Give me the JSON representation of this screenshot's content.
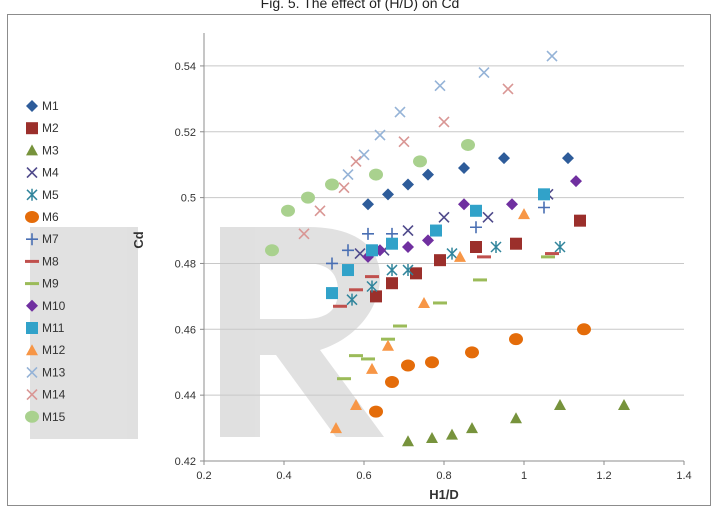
{
  "figure": {
    "title": "Fig. 5. The effect of (H/D) on Cd"
  },
  "chart_data": {
    "type": "scatter",
    "title": "Fig. 5. The effect of (H/D) on Cd",
    "xlabel": "H1/D",
    "ylabel": "Cd",
    "xlim": [
      0.2,
      1.4
    ],
    "ylim": [
      0.42,
      0.55
    ],
    "x_ticks": [
      0.2,
      0.4,
      0.6,
      0.8,
      1,
      1.2,
      1.4
    ],
    "x_tick_labels": [
      "0.2",
      "0.4",
      "0.6",
      "0.8",
      "1",
      "1.2",
      "1.4"
    ],
    "y_ticks": [
      0.42,
      0.44,
      0.46,
      0.48,
      0.5,
      0.52,
      0.54
    ],
    "y_tick_labels": [
      "0.42",
      "0.44",
      "0.46",
      "0.48",
      "0.5",
      "0.52",
      "0.54"
    ],
    "grid": "horizontal major gridlines",
    "legend_position": "left",
    "series": [
      {
        "name": "M1",
        "marker": "diamond",
        "color": "#2e5c9a",
        "x": [
          0.61,
          0.66,
          0.71,
          0.76,
          0.85,
          0.95,
          1.11
        ],
        "y": [
          0.498,
          0.501,
          0.504,
          0.507,
          0.509,
          0.512,
          0.512
        ]
      },
      {
        "name": "M2",
        "marker": "square",
        "color": "#9b2f2b",
        "x": [
          0.63,
          0.67,
          0.73,
          0.79,
          0.88,
          0.98,
          1.14
        ],
        "y": [
          0.47,
          0.474,
          0.477,
          0.481,
          0.485,
          0.486,
          0.493
        ]
      },
      {
        "name": "M3",
        "marker": "triangle",
        "color": "#77933c",
        "x": [
          0.71,
          0.77,
          0.82,
          0.87,
          0.98,
          1.09,
          1.25
        ],
        "y": [
          0.426,
          0.427,
          0.428,
          0.43,
          0.433,
          0.437,
          0.437
        ]
      },
      {
        "name": "M4",
        "marker": "x",
        "color": "#4f4a8b",
        "x": [
          0.59,
          0.65,
          0.71,
          0.8,
          0.91,
          1.06
        ],
        "y": [
          0.483,
          0.484,
          0.49,
          0.494,
          0.494,
          0.501
        ]
      },
      {
        "name": "M5",
        "marker": "asterisk",
        "color": "#31859c",
        "x": [
          0.57,
          0.62,
          0.67,
          0.71,
          0.82,
          0.93,
          1.09
        ],
        "y": [
          0.469,
          0.473,
          0.478,
          0.478,
          0.483,
          0.485,
          0.485
        ]
      },
      {
        "name": "M6",
        "marker": "circle",
        "color": "#e46c0a",
        "x": [
          0.63,
          0.67,
          0.71,
          0.77,
          0.87,
          0.98,
          1.15
        ],
        "y": [
          0.435,
          0.444,
          0.449,
          0.45,
          0.453,
          0.457,
          0.46
        ]
      },
      {
        "name": "M7",
        "marker": "plus",
        "color": "#4a6fb3",
        "x": [
          0.52,
          0.56,
          0.61,
          0.67,
          0.88,
          1.05
        ],
        "y": [
          0.48,
          0.484,
          0.489,
          0.489,
          0.491,
          0.497
        ]
      },
      {
        "name": "M8",
        "marker": "dash",
        "color": "#c0504d",
        "x": [
          0.54,
          0.58,
          0.62,
          0.9,
          1.07
        ],
        "y": [
          0.467,
          0.472,
          0.476,
          0.482,
          0.483
        ]
      },
      {
        "name": "M9",
        "marker": "dash",
        "color": "#9bbb59",
        "x": [
          0.55,
          0.58,
          0.61,
          0.66,
          0.69,
          0.79,
          0.89,
          1.06
        ],
        "y": [
          0.445,
          0.452,
          0.451,
          0.457,
          0.461,
          0.468,
          0.475,
          0.482
        ]
      },
      {
        "name": "M10",
        "marker": "diamond",
        "color": "#7030a0",
        "x": [
          0.61,
          0.64,
          0.71,
          0.76,
          0.85,
          0.97,
          1.13
        ],
        "y": [
          0.482,
          0.484,
          0.485,
          0.487,
          0.498,
          0.498,
          0.505
        ]
      },
      {
        "name": "M11",
        "marker": "square",
        "color": "#31a2c9",
        "x": [
          0.52,
          0.56,
          0.62,
          0.67,
          0.78,
          0.88,
          1.05
        ],
        "y": [
          0.471,
          0.478,
          0.484,
          0.486,
          0.49,
          0.496,
          0.501
        ]
      },
      {
        "name": "M12",
        "marker": "triangle",
        "color": "#f79646",
        "x": [
          0.53,
          0.58,
          0.62,
          0.66,
          0.75,
          0.84,
          1.0
        ],
        "y": [
          0.43,
          0.437,
          0.448,
          0.455,
          0.468,
          0.482,
          0.495
        ]
      },
      {
        "name": "M13",
        "marker": "x",
        "color": "#95b3d7",
        "x": [
          0.56,
          0.6,
          0.64,
          0.69,
          0.79,
          0.9,
          1.07
        ],
        "y": [
          0.507,
          0.513,
          0.519,
          0.526,
          0.534,
          0.538,
          0.543
        ]
      },
      {
        "name": "M14",
        "marker": "x",
        "color": "#d99694",
        "x": [
          0.45,
          0.49,
          0.55,
          0.58,
          0.7,
          0.8,
          0.96
        ],
        "y": [
          0.489,
          0.496,
          0.503,
          0.511,
          0.517,
          0.523,
          0.533
        ]
      },
      {
        "name": "M15",
        "marker": "circle",
        "color": "#a9d18e",
        "x": [
          0.37,
          0.41,
          0.46,
          0.52,
          0.63,
          0.74,
          0.86
        ],
        "y": [
          0.484,
          0.496,
          0.5,
          0.504,
          0.507,
          0.511,
          0.516
        ]
      }
    ]
  }
}
